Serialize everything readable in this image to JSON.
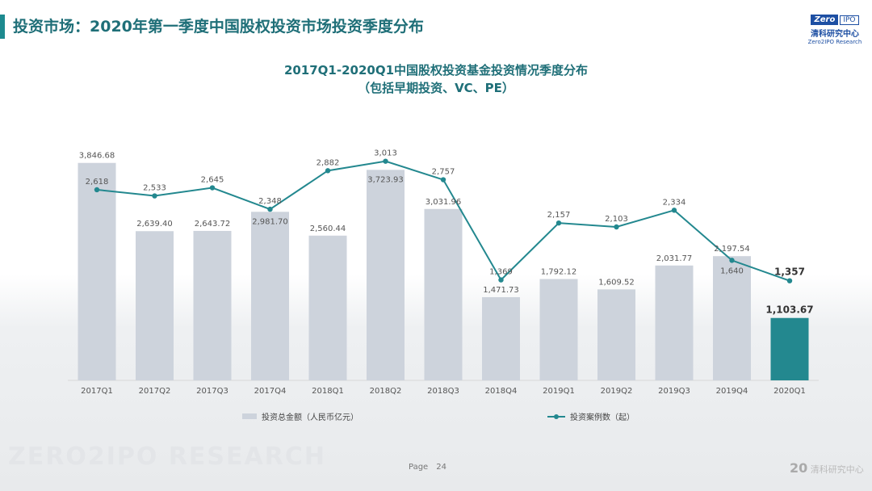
{
  "header": {
    "title": "投资市场：2020年第一季度中国股权投资市场投资季度分布",
    "watermark": "ZERO2IPO RESEARCH"
  },
  "logo": {
    "zero": "Zero",
    "two": "2",
    "ipo": "IPO",
    "cn": "清科研究中心",
    "en": "Zero2IPO Research"
  },
  "chart_data": {
    "type": "bar+line",
    "title": "2017Q1-2020Q1中国股权投资基金投资情况季度分布",
    "subtitle": "（包括早期投资、VC、PE）",
    "categories": [
      "2017Q1",
      "2017Q2",
      "2017Q3",
      "2017Q4",
      "2018Q1",
      "2018Q2",
      "2018Q3",
      "2018Q4",
      "2019Q1",
      "2019Q2",
      "2019Q3",
      "2019Q4",
      "2020Q1"
    ],
    "series": [
      {
        "name": "投资总金额（人民币亿元）",
        "type": "bar",
        "values": [
          3846.68,
          2639.4,
          2643.72,
          2981.7,
          2560.44,
          3723.93,
          3031.96,
          1471.73,
          1792.12,
          1609.52,
          2031.77,
          2197.54,
          1103.67
        ],
        "labels": [
          "3,846.68",
          "2,639.40",
          "2,643.72",
          "2,981.70",
          "2,560.44",
          "3,723.93",
          "3,031.96",
          "1,471.73",
          "1,792.12",
          "1,609.52",
          "2,031.77",
          "2,197.54",
          "1,103.67"
        ],
        "color": "#cdd3dc",
        "highlight_color": "#23888f",
        "ylim": [
          0,
          5000
        ]
      },
      {
        "name": "投资案例数（起）",
        "type": "line",
        "values": [
          2618,
          2533,
          2645,
          2348,
          2882,
          3013,
          2757,
          1369,
          2157,
          2103,
          2334,
          1640,
          1357
        ],
        "labels": [
          "2,618",
          "2,533",
          "2,645",
          "2,348",
          "2,882",
          "3,013",
          "2,757",
          "1,369",
          "2,157",
          "2,103",
          "2,334",
          "1,640",
          "1,357"
        ],
        "color": "#23888f",
        "ylim": [
          0,
          3915
        ]
      }
    ],
    "legend": "bottom",
    "grid": false
  },
  "footer": {
    "page_label": "Page",
    "page_number": "24",
    "brand": "清科研究中心",
    "brand_mark": "20"
  }
}
